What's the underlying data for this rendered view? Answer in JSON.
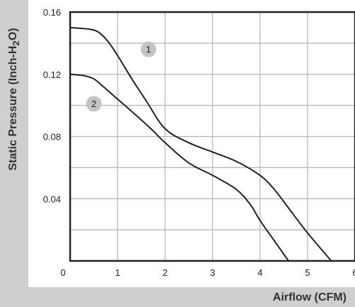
{
  "chart_data": {
    "type": "line",
    "xlabel": "Airflow (CFM)",
    "ylabel_parts": [
      "Static Pressure (Inch-H",
      "2",
      "O)"
    ],
    "xlim": [
      0,
      6
    ],
    "ylim": [
      0,
      0.16
    ],
    "grid": true,
    "x_ticks": [
      "0",
      "1",
      "2",
      "3",
      "4",
      "5",
      "6"
    ],
    "y_ticks": [
      "0.04",
      "0.08",
      "0.12",
      "0.16"
    ],
    "series": [
      {
        "name": "1",
        "x": [
          0,
          0.4,
          0.6,
          0.8,
          1.0,
          1.3,
          1.6,
          2.0,
          2.5,
          3.0,
          3.5,
          4.0,
          4.3,
          4.6,
          5.0,
          5.5
        ],
        "y": [
          0.15,
          0.149,
          0.147,
          0.141,
          0.132,
          0.117,
          0.103,
          0.085,
          0.076,
          0.07,
          0.064,
          0.055,
          0.046,
          0.034,
          0.018,
          0.0
        ]
      },
      {
        "name": "2",
        "x": [
          0,
          0.3,
          0.5,
          0.7,
          1.0,
          1.3,
          1.7,
          2.0,
          2.5,
          3.0,
          3.5,
          3.8,
          4.0,
          4.3,
          4.6
        ],
        "y": [
          0.12,
          0.119,
          0.117,
          0.112,
          0.104,
          0.096,
          0.085,
          0.076,
          0.063,
          0.055,
          0.046,
          0.036,
          0.026,
          0.013,
          0.0
        ]
      }
    ],
    "colors": {
      "line": "#222222",
      "grid": "#b3b3b3",
      "badge": "#c4c4c4",
      "band": "#cfcfcf"
    }
  }
}
